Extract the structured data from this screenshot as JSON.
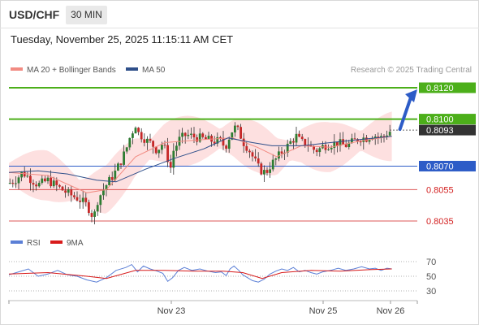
{
  "header": {
    "pair": "USD/CHF",
    "timeframe": "30 MIN",
    "datetime": "Tuesday, November 25, 2025 11:15:11 AM CET"
  },
  "legend": [
    {
      "label": "MA 20 + Bollinger Bands",
      "color": "#f28b82"
    },
    {
      "label": "MA 50",
      "color": "#2e4f8a"
    }
  ],
  "copyright": "Research © 2025 Trading Central",
  "indicator_legend": [
    {
      "label": "RSI",
      "color": "#5b7fd6"
    },
    {
      "label": "9MA",
      "color": "#d81b1b"
    }
  ],
  "chart_data": [
    {
      "type": "candlestick",
      "title": "USD/CHF 30 MIN",
      "x_tick_labels": [
        "Nov 23",
        "Nov 25",
        "Nov 26"
      ],
      "y_range": [
        0.803,
        0.8124
      ],
      "levels": [
        {
          "value": 0.812,
          "label": "0.8120",
          "role": "resistance",
          "color": "#4caf1a"
        },
        {
          "value": 0.81,
          "label": "0.8100",
          "role": "resistance",
          "color": "#4caf1a"
        },
        {
          "value": 0.8093,
          "label": "0.8093",
          "role": "last price",
          "color": "#333333"
        },
        {
          "value": 0.807,
          "label": "0.8070",
          "role": "pivot",
          "color": "#2d5cc7"
        },
        {
          "value": 0.8055,
          "label": "0.8055",
          "role": "support",
          "color": "#d32020"
        },
        {
          "value": 0.8035,
          "label": "0.8035",
          "role": "support",
          "color": "#d32020"
        }
      ],
      "price_path": [
        [
          0,
          0.8059
        ],
        [
          8,
          0.8062
        ],
        [
          14,
          0.8066
        ],
        [
          22,
          0.8062
        ],
        [
          30,
          0.8058
        ],
        [
          40,
          0.8061
        ],
        [
          52,
          0.8056
        ],
        [
          62,
          0.8052
        ],
        [
          72,
          0.8049
        ],
        [
          80,
          0.8045
        ],
        [
          84,
          0.8041
        ],
        [
          87,
          0.8036
        ],
        [
          90,
          0.8047
        ],
        [
          95,
          0.8053
        ],
        [
          100,
          0.8058
        ],
        [
          108,
          0.8065
        ],
        [
          114,
          0.8072
        ],
        [
          120,
          0.808
        ],
        [
          124,
          0.8088
        ],
        [
          128,
          0.8094
        ],
        [
          131,
          0.8098
        ],
        [
          133,
          0.8091
        ],
        [
          137,
          0.8089
        ],
        [
          142,
          0.8086
        ],
        [
          147,
          0.8084
        ],
        [
          152,
          0.808
        ],
        [
          157,
          0.8084
        ],
        [
          160,
          0.8081
        ],
        [
          163,
          0.8075
        ],
        [
          166,
          0.8069
        ],
        [
          169,
          0.808
        ],
        [
          175,
          0.8087
        ],
        [
          182,
          0.809
        ],
        [
          188,
          0.8089
        ],
        [
          195,
          0.8088
        ],
        [
          202,
          0.8087
        ],
        [
          210,
          0.8086
        ],
        [
          217,
          0.8086
        ],
        [
          222,
          0.8082
        ],
        [
          227,
          0.809
        ],
        [
          231,
          0.8095
        ],
        [
          236,
          0.8092
        ],
        [
          241,
          0.8085
        ],
        [
          246,
          0.8081
        ],
        [
          251,
          0.8075
        ],
        [
          256,
          0.8069
        ],
        [
          261,
          0.8066
        ],
        [
          265,
          0.8067
        ],
        [
          269,
          0.8071
        ],
        [
          275,
          0.8075
        ],
        [
          280,
          0.8079
        ],
        [
          285,
          0.8082
        ],
        [
          290,
          0.8086
        ],
        [
          295,
          0.8089
        ],
        [
          300,
          0.8085
        ],
        [
          306,
          0.8085
        ],
        [
          311,
          0.8081
        ],
        [
          317,
          0.808
        ],
        [
          323,
          0.8083
        ],
        [
          330,
          0.8084
        ],
        [
          337,
          0.8085
        ],
        [
          345,
          0.8083
        ],
        [
          352,
          0.8085
        ],
        [
          360,
          0.8088
        ],
        [
          367,
          0.8088
        ],
        [
          373,
          0.809
        ],
        [
          378,
          0.8089
        ],
        [
          383,
          0.8088
        ],
        [
          388,
          0.8091
        ],
        [
          393,
          0.8093
        ]
      ],
      "ma20_path": [
        [
          0,
          0.8066
        ],
        [
          40,
          0.8064
        ],
        [
          80,
          0.8053
        ],
        [
          100,
          0.8055
        ],
        [
          130,
          0.8076
        ],
        [
          160,
          0.8085
        ],
        [
          200,
          0.8087
        ],
        [
          230,
          0.8088
        ],
        [
          255,
          0.8082
        ],
        [
          275,
          0.8076
        ],
        [
          300,
          0.8083
        ],
        [
          330,
          0.8082
        ],
        [
          360,
          0.8086
        ],
        [
          393,
          0.8089
        ]
      ],
      "ma50_path": [
        [
          0,
          0.8066
        ],
        [
          30,
          0.8067
        ],
        [
          60,
          0.8065
        ],
        [
          90,
          0.8061
        ],
        [
          110,
          0.806
        ],
        [
          140,
          0.8068
        ],
        [
          170,
          0.8075
        ],
        [
          200,
          0.8081
        ],
        [
          225,
          0.8088
        ],
        [
          250,
          0.8085
        ],
        [
          270,
          0.8083
        ],
        [
          300,
          0.8083
        ],
        [
          330,
          0.8085
        ],
        [
          360,
          0.8087
        ],
        [
          393,
          0.8089
        ]
      ],
      "projection": {
        "from": 0.8093,
        "to": 0.812
      }
    },
    {
      "type": "line",
      "title": "RSI",
      "y_ticks": [
        30,
        50,
        70
      ],
      "y_range": [
        25,
        75
      ],
      "series": [
        {
          "name": "RSI",
          "points": [
            [
              0,
              52
            ],
            [
              10,
              56
            ],
            [
              20,
              60
            ],
            [
              30,
              50
            ],
            [
              40,
              53
            ],
            [
              50,
              58
            ],
            [
              60,
              52
            ],
            [
              70,
              50
            ],
            [
              80,
              45
            ],
            [
              90,
              42
            ],
            [
              100,
              48
            ],
            [
              110,
              58
            ],
            [
              120,
              62
            ],
            [
              126,
              66
            ],
            [
              132,
              56
            ],
            [
              138,
              64
            ],
            [
              145,
              60
            ],
            [
              152,
              57
            ],
            [
              158,
              54
            ],
            [
              163,
              43
            ],
            [
              168,
              48
            ],
            [
              174,
              58
            ],
            [
              180,
              62
            ],
            [
              188,
              58
            ],
            [
              196,
              60
            ],
            [
              204,
              57
            ],
            [
              212,
              55
            ],
            [
              218,
              56
            ],
            [
              223,
              51
            ],
            [
              227,
              60
            ],
            [
              231,
              64
            ],
            [
              236,
              58
            ],
            [
              240,
              52
            ],
            [
              245,
              48
            ],
            [
              250,
              44
            ],
            [
              256,
              42
            ],
            [
              262,
              46
            ],
            [
              268,
              53
            ],
            [
              274,
              57
            ],
            [
              280,
              60
            ],
            [
              286,
              58
            ],
            [
              292,
              62
            ],
            [
              298,
              56
            ],
            [
              304,
              58
            ],
            [
              310,
              55
            ],
            [
              316,
              53
            ],
            [
              322,
              56
            ],
            [
              330,
              58
            ],
            [
              338,
              61
            ],
            [
              346,
              58
            ],
            [
              354,
              60
            ],
            [
              362,
              63
            ],
            [
              370,
              60
            ],
            [
              376,
              61
            ],
            [
              382,
              58
            ],
            [
              388,
              61
            ],
            [
              393,
              60
            ]
          ]
        },
        {
          "name": "9MA",
          "points": [
            [
              0,
              53
            ],
            [
              40,
              55
            ],
            [
              80,
              50
            ],
            [
              100,
              47
            ],
            [
              130,
              58
            ],
            [
              160,
              58
            ],
            [
              190,
              57
            ],
            [
              220,
              57
            ],
            [
              240,
              55
            ],
            [
              260,
              47
            ],
            [
              280,
              55
            ],
            [
              310,
              58
            ],
            [
              340,
              57
            ],
            [
              370,
              59
            ],
            [
              393,
              60
            ]
          ]
        }
      ]
    }
  ]
}
